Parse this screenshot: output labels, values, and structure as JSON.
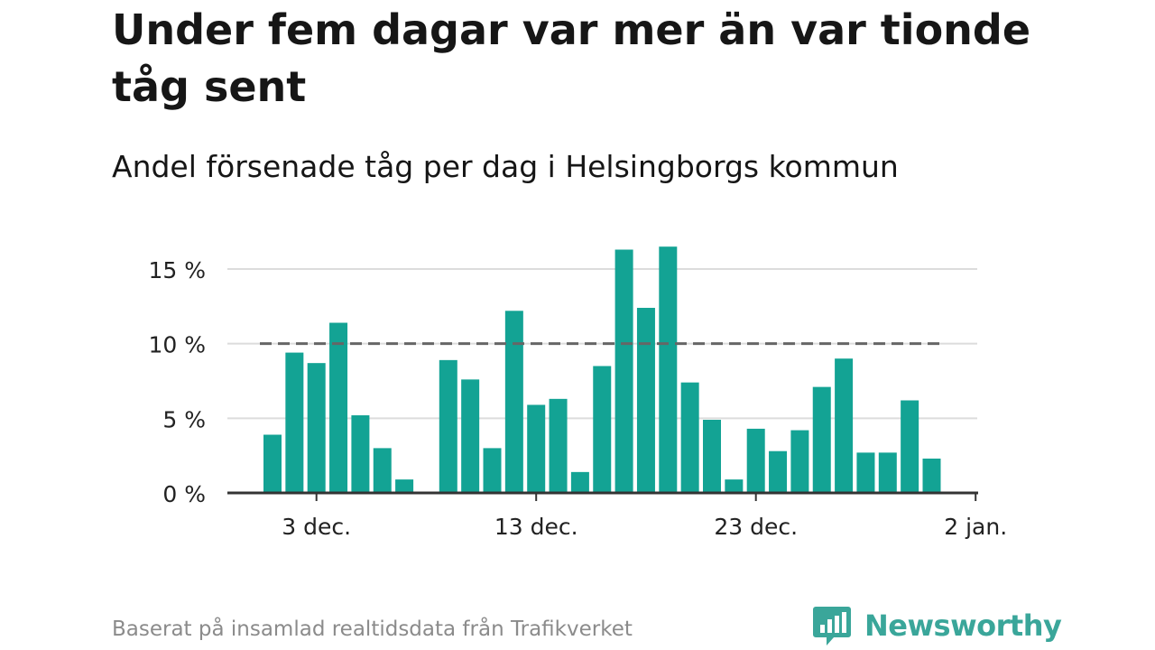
{
  "title": "Under fem dagar var mer än var tionde tåg sent",
  "subtitle": "Andel försenade tåg per dag i Helsingborgs kommun",
  "source": "Baserat på insamlad realtidsdata från Trafikverket",
  "brand": {
    "name": "Newsworthy",
    "color": "#3aa69a"
  },
  "chart_data": {
    "type": "bar",
    "bar_color": "#13a394",
    "reference_line": {
      "value": 10,
      "style": "dashed",
      "color": "#666666"
    },
    "ylim": [
      0,
      16.5
    ],
    "yticks": [
      {
        "value": 0,
        "label": "0 %"
      },
      {
        "value": 5,
        "label": "5 %"
      },
      {
        "value": 10,
        "label": "10 %"
      },
      {
        "value": 15,
        "label": "15 %"
      }
    ],
    "xticks": [
      {
        "day": 3,
        "label": "3 dec."
      },
      {
        "day": 13,
        "label": "13 dec."
      },
      {
        "day": 23,
        "label": "23 dec."
      },
      {
        "day": 33,
        "label": "2 jan."
      }
    ],
    "grid": true,
    "days": [
      1,
      2,
      3,
      4,
      5,
      6,
      7,
      9,
      10,
      11,
      12,
      13,
      14,
      15,
      16,
      17,
      18,
      19,
      20,
      21,
      22,
      23,
      24,
      25,
      26,
      27,
      28,
      29,
      30,
      31
    ],
    "values": [
      3.9,
      9.4,
      8.7,
      11.4,
      5.2,
      3.0,
      0.9,
      8.9,
      7.6,
      3.0,
      12.2,
      5.9,
      6.3,
      1.4,
      8.5,
      16.3,
      12.4,
      16.5,
      7.4,
      4.9,
      0.9,
      4.3,
      2.8,
      4.2,
      7.1,
      9.0,
      2.7,
      2.7,
      6.2,
      2.3
    ]
  }
}
